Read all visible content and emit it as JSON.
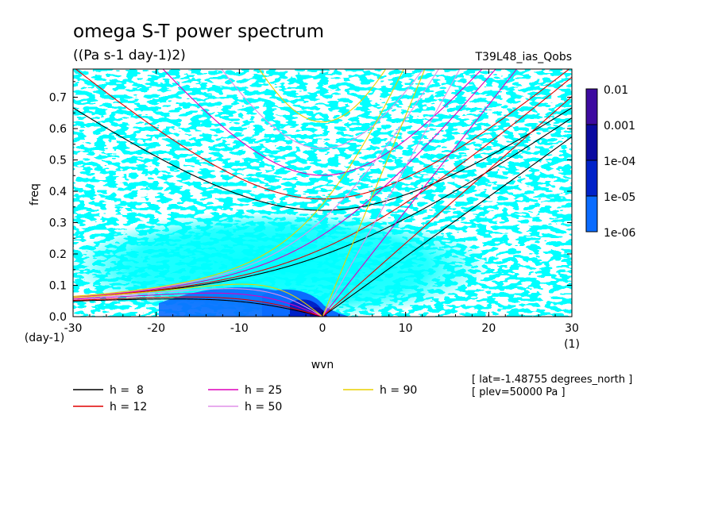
{
  "chart_data": {
    "type": "heatmap",
    "title": "omega S-T power spectrum",
    "subtitle": "((Pa s-1 day-1)2)",
    "dataset": "T39L48_ias_Qobs",
    "xlabel": "wvn",
    "ylabel": "freq",
    "x_unit": "(1)",
    "y_unit": "(day-1)",
    "xlim": [
      -30,
      30
    ],
    "ylim": [
      0,
      0.79
    ],
    "x_ticks": [
      "-30",
      "-20",
      "-10",
      "0",
      "10",
      "20",
      "30"
    ],
    "y_ticks": [
      "0.0",
      "0.1",
      "0.2",
      "0.3",
      "0.4",
      "0.5",
      "0.6",
      "0.7"
    ],
    "colorbar": {
      "levels": [
        "1e-06",
        "1e-05",
        "1e-04",
        "0.001",
        "0.01"
      ],
      "colors": [
        "#00ffff",
        "#0a6cff",
        "#0022c8",
        "#0a0aa0",
        "#3d0aa0"
      ]
    },
    "legend": [
      {
        "label": "h =  8",
        "color": "#000000"
      },
      {
        "label": "h = 12",
        "color": "#e00000"
      },
      {
        "label": "h = 25",
        "color": "#dd00bb"
      },
      {
        "label": "h = 50",
        "color": "#e090e8"
      },
      {
        "label": "h = 90",
        "color": "#e8d000"
      }
    ],
    "info": [
      "[ lat=-1.48755 degrees_north ]",
      "[ plev=50000 Pa ]"
    ]
  }
}
